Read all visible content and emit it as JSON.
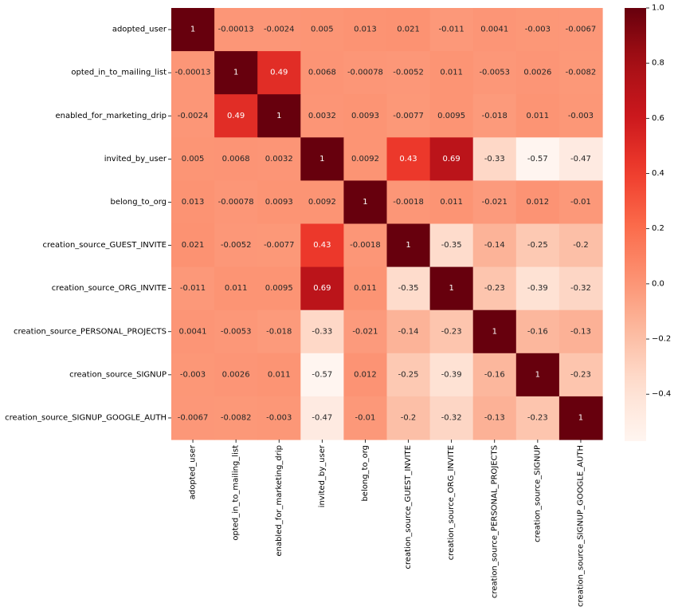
{
  "chart_data": {
    "type": "heatmap",
    "title": "",
    "xlabel": "",
    "ylabel": "",
    "colormap": "Reds",
    "vmin": -0.57,
    "vmax": 1.0,
    "annotated": true,
    "labels": [
      "adopted_user",
      "opted_in_to_mailing_list",
      "enabled_for_marketing_drip",
      "invited_by_user",
      "belong_to_org",
      "creation_source_GUEST_INVITE",
      "creation_source_ORG_INVITE",
      "creation_source_PERSONAL_PROJECTS",
      "creation_source_SIGNUP",
      "creation_source_SIGNUP_GOOGLE_AUTH"
    ],
    "values": [
      [
        1,
        -0.00013,
        -0.0024,
        0.005,
        0.013,
        0.021,
        -0.011,
        0.0041,
        -0.003,
        -0.0067
      ],
      [
        -0.00013,
        1,
        0.49,
        0.0068,
        -0.00078,
        -0.0052,
        0.011,
        -0.0053,
        0.0026,
        -0.0082
      ],
      [
        -0.0024,
        0.49,
        1,
        0.0032,
        0.0093,
        -0.0077,
        0.0095,
        -0.018,
        0.011,
        -0.003
      ],
      [
        0.005,
        0.0068,
        0.0032,
        1,
        0.0092,
        0.43,
        0.69,
        -0.33,
        -0.57,
        -0.47
      ],
      [
        0.013,
        -0.00078,
        0.0093,
        0.0092,
        1,
        -0.0018,
        0.011,
        -0.021,
        0.012,
        -0.01
      ],
      [
        0.021,
        -0.0052,
        -0.0077,
        0.43,
        -0.0018,
        1,
        -0.35,
        -0.14,
        -0.25,
        -0.2
      ],
      [
        -0.011,
        0.011,
        0.0095,
        0.69,
        0.011,
        -0.35,
        1,
        -0.23,
        -0.39,
        -0.32
      ],
      [
        0.0041,
        -0.0053,
        -0.018,
        -0.33,
        -0.021,
        -0.14,
        -0.23,
        1,
        -0.16,
        -0.13
      ],
      [
        -0.003,
        0.0026,
        0.011,
        -0.57,
        0.012,
        -0.25,
        -0.39,
        -0.16,
        1,
        -0.23
      ],
      [
        -0.0067,
        -0.0082,
        -0.003,
        -0.47,
        -0.01,
        -0.2,
        -0.32,
        -0.13,
        -0.23,
        1
      ]
    ],
    "cell_text": [
      [
        "1",
        "-0.00013",
        "-0.0024",
        "0.005",
        "0.013",
        "0.021",
        "-0.011",
        "0.0041",
        "-0.003",
        "-0.0067"
      ],
      [
        "-0.00013",
        "1",
        "0.49",
        "0.0068",
        "-0.00078",
        "-0.0052",
        "0.011",
        "-0.0053",
        "0.0026",
        "-0.0082"
      ],
      [
        "-0.0024",
        "0.49",
        "1",
        "0.0032",
        "0.0093",
        "-0.0077",
        "0.0095",
        "-0.018",
        "0.011",
        "-0.003"
      ],
      [
        "0.005",
        "0.0068",
        "0.0032",
        "1",
        "0.0092",
        "0.43",
        "0.69",
        "-0.33",
        "-0.57",
        "-0.47"
      ],
      [
        "0.013",
        "-0.00078",
        "0.0093",
        "0.0092",
        "1",
        "-0.0018",
        "0.011",
        "-0.021",
        "0.012",
        "-0.01"
      ],
      [
        "0.021",
        "-0.0052",
        "-0.0077",
        "0.43",
        "-0.0018",
        "1",
        "-0.35",
        "-0.14",
        "-0.25",
        "-0.2"
      ],
      [
        "-0.011",
        "0.011",
        "0.0095",
        "0.69",
        "0.011",
        "-0.35",
        "1",
        "-0.23",
        "-0.39",
        "-0.32"
      ],
      [
        "0.0041",
        "-0.0053",
        "-0.018",
        "-0.33",
        "-0.021",
        "-0.14",
        "-0.23",
        "1",
        "-0.16",
        "-0.13"
      ],
      [
        "-0.003",
        "0.0026",
        "0.011",
        "-0.57",
        "0.012",
        "-0.25",
        "-0.39",
        "-0.16",
        "1",
        "-0.23"
      ],
      [
        "-0.0067",
        "-0.0082",
        "-0.003",
        "-0.47",
        "-0.01",
        "-0.2",
        "-0.32",
        "-0.13",
        "-0.23",
        "1"
      ]
    ],
    "colorbar": {
      "ticks": [
        -0.4,
        -0.2,
        0.0,
        0.2,
        0.4,
        0.6,
        0.8,
        1.0
      ],
      "tick_labels": [
        "−0.4",
        "−0.2",
        "0.0",
        "0.2",
        "0.4",
        "0.6",
        "0.8",
        "1.0"
      ]
    },
    "legend": "colorbar-right",
    "grid": false
  }
}
